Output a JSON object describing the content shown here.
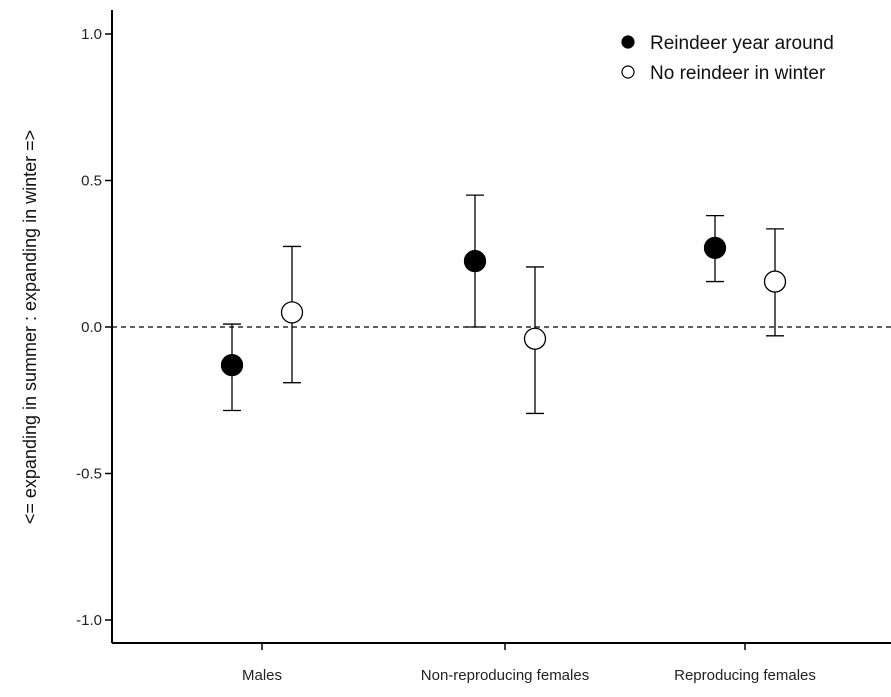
{
  "chart_data": {
    "type": "scatter",
    "ylabel": "<= expanding in summer  :  expanding in winter =>",
    "xlabel": "",
    "ylim": [
      -1.1,
      1.1
    ],
    "yticks": [
      1.0,
      0.5,
      0.0,
      -0.5,
      -1.0
    ],
    "ytick_labels": [
      "1.0",
      "0.5",
      "0.0",
      "-0.5",
      "-1.0"
    ],
    "reference_line": 0.0,
    "categories": [
      "Males",
      "Non-reproducing females",
      "Reproducing females"
    ],
    "legend_position": "top-right",
    "series": [
      {
        "name": "Reindeer year around",
        "marker": "filled",
        "color": "#000000",
        "values": [
          -0.13,
          0.225,
          0.27
        ],
        "lower": [
          -0.285,
          0.0,
          0.155
        ],
        "upper": [
          0.01,
          0.45,
          0.38
        ]
      },
      {
        "name": "No reindeer in winter",
        "marker": "open",
        "color": "#ffffff",
        "values": [
          0.05,
          -0.04,
          0.155
        ],
        "lower": [
          -0.19,
          -0.295,
          -0.03
        ],
        "upper": [
          0.275,
          0.205,
          0.335
        ]
      }
    ]
  }
}
